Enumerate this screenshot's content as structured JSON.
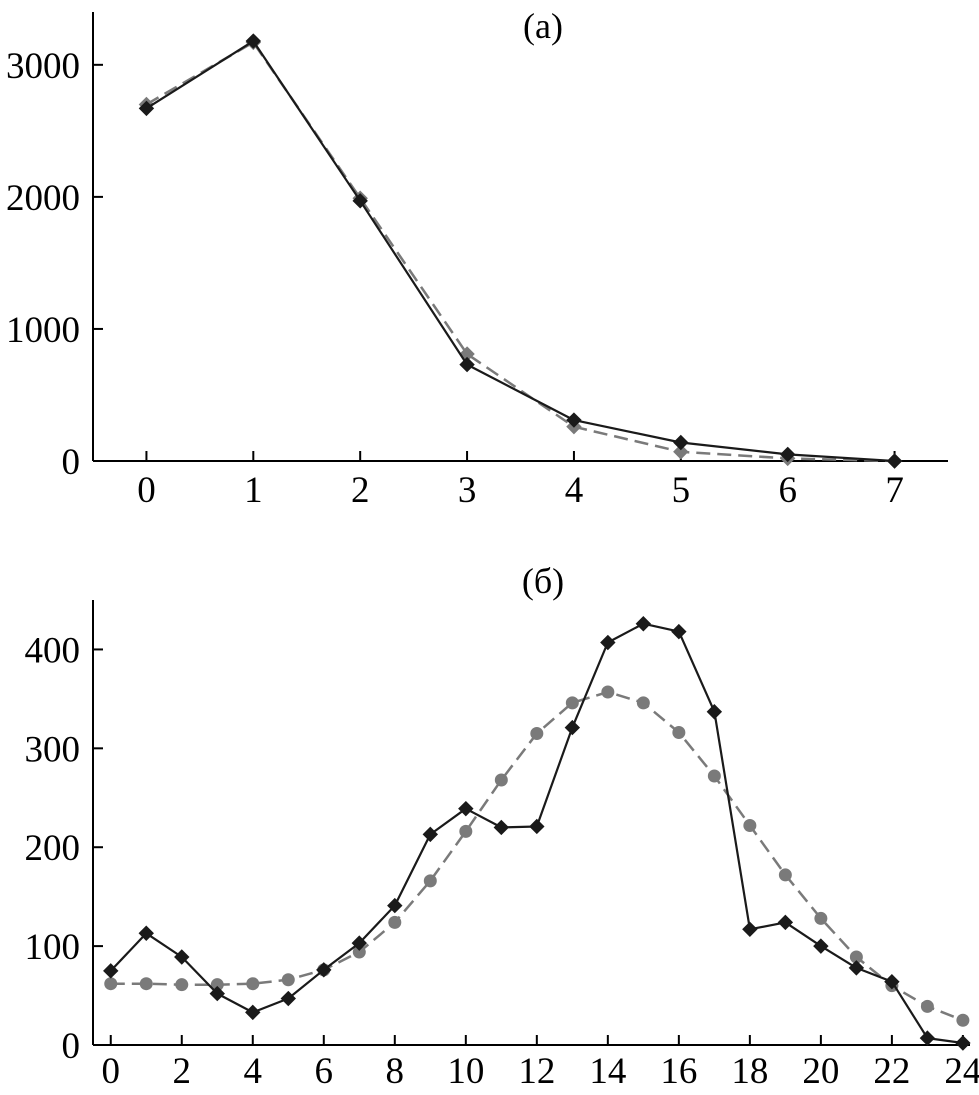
{
  "chart_data": [
    {
      "type": "line",
      "title": "(a)",
      "xlabel": "",
      "ylabel": "",
      "xlim": [
        -0.5,
        7.5
      ],
      "ylim": [
        0,
        3400
      ],
      "x_ticks": [
        "0",
        "1",
        "2",
        "3",
        "4",
        "5",
        "6",
        "7"
      ],
      "y_ticks": [
        "0",
        "1000",
        "2000",
        "3000"
      ],
      "x": [
        0,
        1,
        2,
        3,
        4,
        5,
        6,
        7
      ],
      "grid": false,
      "series": [
        {
          "values": [
            2670,
            3180,
            1970,
            730,
            310,
            140,
            50,
            0
          ],
          "color": "#1a1a1a",
          "style": "solid",
          "marker": "diamond"
        },
        {
          "values": [
            2700,
            3170,
            1990,
            810,
            260,
            70,
            20,
            0
          ],
          "color": "#7a7a7a",
          "style": "dashed",
          "marker": "diamond"
        }
      ]
    },
    {
      "type": "line",
      "title": "(б)",
      "xlabel": "",
      "ylabel": "",
      "xlim": [
        -0.5,
        24.2
      ],
      "ylim": [
        0,
        450
      ],
      "x_ticks": [
        "0",
        "2",
        "4",
        "6",
        "8",
        "10",
        "12",
        "14",
        "16",
        "18",
        "20",
        "22",
        "24"
      ],
      "y_ticks": [
        "0",
        "100",
        "200",
        "300",
        "400"
      ],
      "x": [
        0,
        1,
        2,
        3,
        4,
        5,
        6,
        7,
        8,
        9,
        10,
        11,
        12,
        13,
        14,
        15,
        16,
        17,
        18,
        19,
        20,
        21,
        22,
        23,
        24
      ],
      "grid": false,
      "series": [
        {
          "values": [
            75,
            113,
            89,
            52,
            33,
            47,
            76,
            103,
            141,
            213,
            239,
            220,
            221,
            321,
            407,
            426,
            418,
            337,
            117,
            124,
            100,
            78,
            64,
            7,
            2
          ],
          "color": "#1a1a1a",
          "style": "solid",
          "marker": "diamond"
        },
        {
          "values": [
            62,
            62,
            61,
            61,
            62,
            66,
            76,
            94,
            124,
            166,
            216,
            268,
            315,
            346,
            357,
            346,
            316,
            272,
            222,
            172,
            128,
            89,
            60,
            39,
            25
          ],
          "color": "#7a7a7a",
          "style": "dashed",
          "marker": "circle"
        }
      ]
    }
  ]
}
